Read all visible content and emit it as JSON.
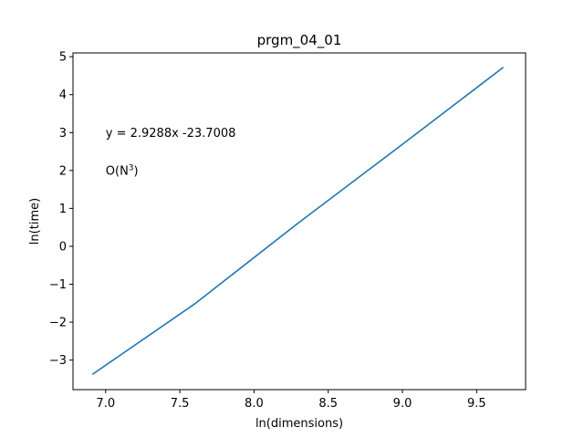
{
  "chart_data": {
    "type": "line",
    "title": "prgm_04_01",
    "xlabel": "ln(dimensions)",
    "ylabel": "ln(time)",
    "xlim": [
      6.78,
      9.83
    ],
    "ylim": [
      -3.78,
      5.1
    ],
    "xticks": [
      7.0,
      7.5,
      8.0,
      8.5,
      9.0,
      9.5
    ],
    "xtick_labels": [
      "7.0",
      "7.5",
      "8.0",
      "8.5",
      "9.0",
      "9.5"
    ],
    "yticks": [
      -3,
      -2,
      -1,
      0,
      1,
      2,
      3,
      4,
      5
    ],
    "ytick_labels": [
      "−3",
      "−2",
      "−1",
      "0",
      "1",
      "2",
      "3",
      "4",
      "5"
    ],
    "grid": false,
    "series": [
      {
        "color": "#1f77b4",
        "x": [
          6.91,
          7.6,
          8.29,
          8.99,
          9.68
        ],
        "y": [
          -3.38,
          -1.52,
          0.59,
          2.66,
          4.72
        ]
      }
    ],
    "annotations": [
      {
        "text": "y = 2.9288x -23.7008",
        "x": 7.0,
        "y": 3.0
      },
      {
        "text_base": "O(N",
        "superscript": "3",
        "text_end": ")",
        "x": 7.0,
        "y": 2.0
      }
    ]
  }
}
